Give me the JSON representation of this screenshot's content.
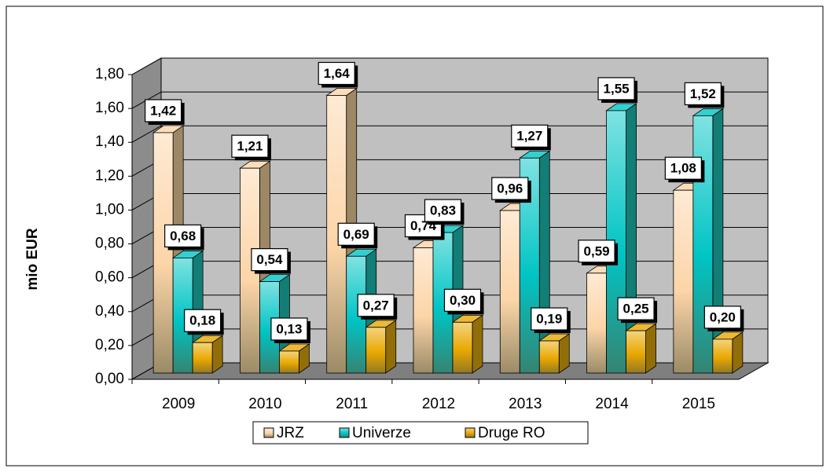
{
  "chart_data": {
    "type": "bar",
    "y_label": "mio EUR",
    "categories": [
      "2009",
      "2010",
      "2011",
      "2012",
      "2013",
      "2014",
      "2015"
    ],
    "series": [
      {
        "name": "JRZ",
        "color": "#fcd5a8",
        "values": [
          1.42,
          1.21,
          1.64,
          0.74,
          0.96,
          0.59,
          1.08
        ],
        "value_labels": [
          "1,42",
          "1,21",
          "1,64",
          "0,74",
          "0,96",
          "0,59",
          "1,08"
        ]
      },
      {
        "name": "Univerze",
        "color": "#00c4c4",
        "values": [
          0.68,
          0.54,
          0.69,
          0.83,
          1.27,
          1.55,
          1.52
        ],
        "value_labels": [
          "0,68",
          "0,54",
          "0,69",
          "0,83",
          "1,27",
          "1,55",
          "1,52"
        ]
      },
      {
        "name": "Druge RO",
        "color": "#e8a800",
        "values": [
          0.18,
          0.13,
          0.27,
          0.3,
          0.19,
          0.25,
          0.2
        ],
        "value_labels": [
          "0,18",
          "0,13",
          "0,27",
          "0,30",
          "0,19",
          "0,25",
          "0,20"
        ]
      }
    ],
    "ylim": [
      0,
      1.8
    ],
    "yticks": [
      {
        "value": 0,
        "label": "0,00"
      },
      {
        "value": 0.2,
        "label": "0,20"
      },
      {
        "value": 0.4,
        "label": "0,40"
      },
      {
        "value": 0.6,
        "label": "0,60"
      },
      {
        "value": 0.8,
        "label": "0,80"
      },
      {
        "value": 1,
        "label": "1,00"
      },
      {
        "value": 1.2,
        "label": "1,20"
      },
      {
        "value": 1.4,
        "label": "1,40"
      },
      {
        "value": 1.6,
        "label": "1,60"
      },
      {
        "value": 1.8,
        "label": "1,80"
      }
    ],
    "grid": true,
    "legend": "bottom"
  }
}
